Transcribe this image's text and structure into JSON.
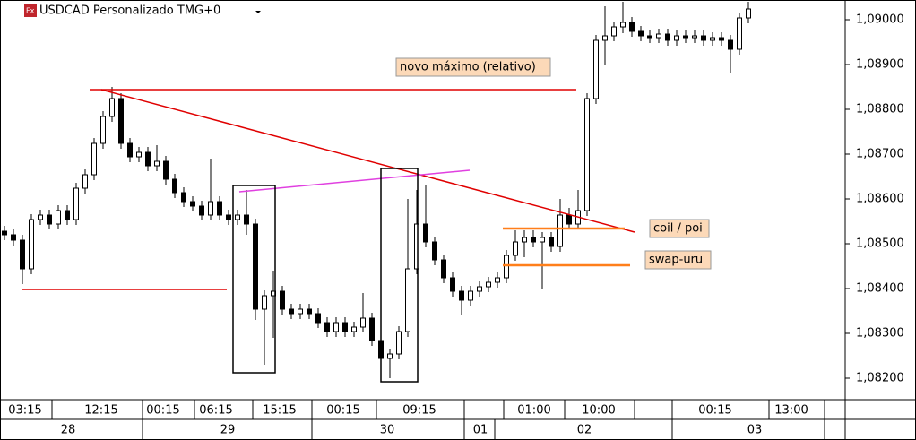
{
  "chart_data": {
    "type": "candlestick",
    "title": "USDCAD Personalizado TMG+0",
    "annotations": [
      "novo máximo (relativo)",
      "coil / poi",
      "swap-uru"
    ],
    "up_color": "#ffffff",
    "down_color": "#000000",
    "ylim": [
      1.08152,
      1.09044
    ],
    "yticks": [
      {
        "value": 1.082,
        "label": "1,08200"
      },
      {
        "value": 1.083,
        "label": "1,08300"
      },
      {
        "value": 1.084,
        "label": "1,08400"
      },
      {
        "value": 1.085,
        "label": "1,08500"
      },
      {
        "value": 1.086,
        "label": "1,08600"
      },
      {
        "value": 1.087,
        "label": "1,08700"
      },
      {
        "value": 1.088,
        "label": "1,08800"
      },
      {
        "value": 1.089,
        "label": "1,08900"
      },
      {
        "value": 1.09,
        "label": "1,09000"
      }
    ],
    "time_axis": {
      "times": [
        "03:15",
        "12:15",
        "00:15",
        "06:15",
        "15:15",
        "00:15",
        "09:15",
        "01:00",
        "10:00",
        "00:15",
        "13:00"
      ],
      "dates": [
        "28",
        "29",
        "30",
        "01",
        "02",
        "03"
      ]
    },
    "open": [
      1.08528,
      1.0852,
      1.08508,
      1.08444,
      1.08554,
      1.08564,
      1.08544,
      1.08574,
      1.08554,
      1.08624,
      1.08654,
      1.08724,
      1.08784,
      1.08824,
      1.08724,
      1.08694,
      1.08704,
      1.08674,
      1.08684,
      1.08644,
      1.08614,
      1.08594,
      1.08584,
      1.08564,
      1.08594,
      1.08564,
      1.08554,
      1.08564,
      1.08544,
      1.08354,
      1.08384,
      1.08394,
      1.08354,
      1.08344,
      1.08354,
      1.08344,
      1.08324,
      1.08304,
      1.08324,
      1.08304,
      1.08314,
      1.08334,
      1.08284,
      1.08244,
      1.08254,
      1.08304,
      1.08444,
      1.08544,
      1.08504,
      1.08464,
      1.08424,
      1.08394,
      1.08374,
      1.08394,
      1.08404,
      1.08414,
      1.08424,
      1.08474,
      1.08504,
      1.08514,
      1.08504,
      1.08514,
      1.08494,
      1.08564,
      1.08544,
      1.08574,
      1.08824,
      1.08954,
      1.08964,
      1.08984,
      1.08994,
      1.08974,
      1.08964,
      1.0896,
      1.08968,
      1.08954,
      1.08964,
      1.0896,
      1.08964,
      1.08954,
      1.0896,
      1.08954,
      1.08934,
      1.09004
    ],
    "high": [
      1.0854,
      1.08532,
      1.0852,
      1.08566,
      1.08576,
      1.08576,
      1.08586,
      1.08586,
      1.08636,
      1.08666,
      1.08736,
      1.08796,
      1.0885,
      1.08836,
      1.08736,
      1.08716,
      1.08716,
      1.0872,
      1.08696,
      1.08656,
      1.08626,
      1.08606,
      1.08596,
      1.0869,
      1.08606,
      1.08576,
      1.08576,
      1.0862,
      1.08556,
      1.08396,
      1.0844,
      1.08406,
      1.08366,
      1.08366,
      1.08366,
      1.08356,
      1.08336,
      1.08336,
      1.08336,
      1.08326,
      1.0839,
      1.08346,
      1.08296,
      1.08266,
      1.08316,
      1.086,
      1.0862,
      1.0863,
      1.08516,
      1.08476,
      1.08436,
      1.08406,
      1.08406,
      1.08416,
      1.08426,
      1.08436,
      1.08486,
      1.0853,
      1.0853,
      1.0853,
      1.08526,
      1.08526,
      1.086,
      1.0858,
      1.0862,
      1.08836,
      1.08966,
      1.0903,
      1.08996,
      1.0904,
      1.09006,
      1.08986,
      1.08976,
      1.0898,
      1.0898,
      1.08976,
      1.08976,
      1.08976,
      1.08976,
      1.08972,
      1.08972,
      1.08966,
      1.09016,
      1.0904
    ],
    "low": [
      1.08508,
      1.08496,
      1.0841,
      1.08432,
      1.08542,
      1.08532,
      1.08532,
      1.08542,
      1.08542,
      1.08612,
      1.08642,
      1.08712,
      1.08772,
      1.08712,
      1.08682,
      1.08682,
      1.08662,
      1.08662,
      1.08632,
      1.08602,
      1.08582,
      1.08572,
      1.08552,
      1.08552,
      1.08552,
      1.08542,
      1.08542,
      1.0852,
      1.0833,
      1.0823,
      1.0829,
      1.08342,
      1.08332,
      1.08332,
      1.08332,
      1.08312,
      1.08292,
      1.08292,
      1.08292,
      1.08292,
      1.08302,
      1.08272,
      1.08212,
      1.082,
      1.08242,
      1.08292,
      1.08432,
      1.08492,
      1.08452,
      1.08412,
      1.08382,
      1.0834,
      1.08362,
      1.08382,
      1.08392,
      1.08402,
      1.08412,
      1.08462,
      1.0847,
      1.08492,
      1.084,
      1.08482,
      1.08482,
      1.08532,
      1.08532,
      1.08562,
      1.08812,
      1.089,
      1.08952,
      1.0897,
      1.08962,
      1.08952,
      1.08948,
      1.08948,
      1.08942,
      1.08942,
      1.08948,
      1.08948,
      1.08942,
      1.08942,
      1.08942,
      1.0888,
      1.08922,
      1.08992
    ],
    "close": [
      1.0852,
      1.08508,
      1.08444,
      1.08554,
      1.08564,
      1.08544,
      1.08574,
      1.08554,
      1.08624,
      1.08654,
      1.08724,
      1.08784,
      1.08824,
      1.08724,
      1.08694,
      1.08704,
      1.08674,
      1.08684,
      1.08644,
      1.08614,
      1.08594,
      1.08584,
      1.08564,
      1.08594,
      1.08564,
      1.08554,
      1.08564,
      1.08544,
      1.08354,
      1.08384,
      1.08394,
      1.08354,
      1.08344,
      1.08354,
      1.08344,
      1.08324,
      1.08304,
      1.08324,
      1.08304,
      1.08314,
      1.08334,
      1.08284,
      1.08244,
      1.08254,
      1.08304,
      1.08444,
      1.08544,
      1.08504,
      1.08464,
      1.08424,
      1.08394,
      1.08374,
      1.08394,
      1.08404,
      1.08414,
      1.08424,
      1.08474,
      1.08504,
      1.08514,
      1.08504,
      1.08514,
      1.08494,
      1.08564,
      1.08544,
      1.08574,
      1.08824,
      1.08954,
      1.08964,
      1.08984,
      1.08994,
      1.08974,
      1.08964,
      1.0896,
      1.08968,
      1.08954,
      1.08964,
      1.0896,
      1.08964,
      1.08954,
      1.0896,
      1.08954,
      1.08934,
      1.09004,
      1.09024
    ]
  }
}
